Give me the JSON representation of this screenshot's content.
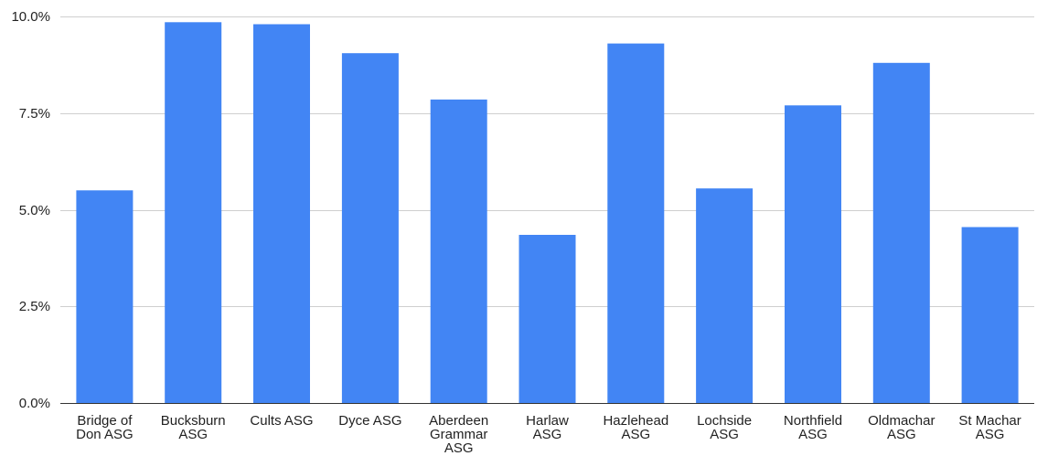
{
  "chart_data": {
    "type": "bar",
    "title": "",
    "xlabel": "",
    "ylabel": "",
    "categories": [
      "Bridge of Don ASG",
      "Bucksburn ASG",
      "Cults ASG",
      "Dyce ASG",
      "Aberdeen Grammar ASG",
      "Harlaw ASG",
      "Hazlehead ASG",
      "Lochside ASG",
      "Northfield ASG",
      "Oldmachar ASG",
      "St Machar ASG"
    ],
    "category_label_lines": [
      [
        "Bridge of",
        "Don ASG"
      ],
      [
        "Bucksburn",
        "ASG"
      ],
      [
        "Cults ASG"
      ],
      [
        "Dyce ASG"
      ],
      [
        "Aberdeen",
        "Grammar",
        "ASG"
      ],
      [
        "Harlaw",
        "ASG"
      ],
      [
        "Hazlehead",
        "ASG"
      ],
      [
        "Lochside",
        "ASG"
      ],
      [
        "Northfield",
        "ASG"
      ],
      [
        "Oldmachar",
        "ASG"
      ],
      [
        "St Machar",
        "ASG"
      ]
    ],
    "values": [
      5.5,
      9.85,
      9.8,
      9.05,
      7.85,
      4.35,
      9.3,
      5.55,
      7.7,
      8.8,
      4.55
    ],
    "ylim": [
      0,
      10
    ],
    "yticks": [
      0,
      2.5,
      5,
      7.5,
      10
    ],
    "ytick_labels": [
      "0.0%",
      "2.5%",
      "5.0%",
      "7.5%",
      "10.0%"
    ],
    "grid": true,
    "legend": "none",
    "bar_color": "#4285f4"
  }
}
